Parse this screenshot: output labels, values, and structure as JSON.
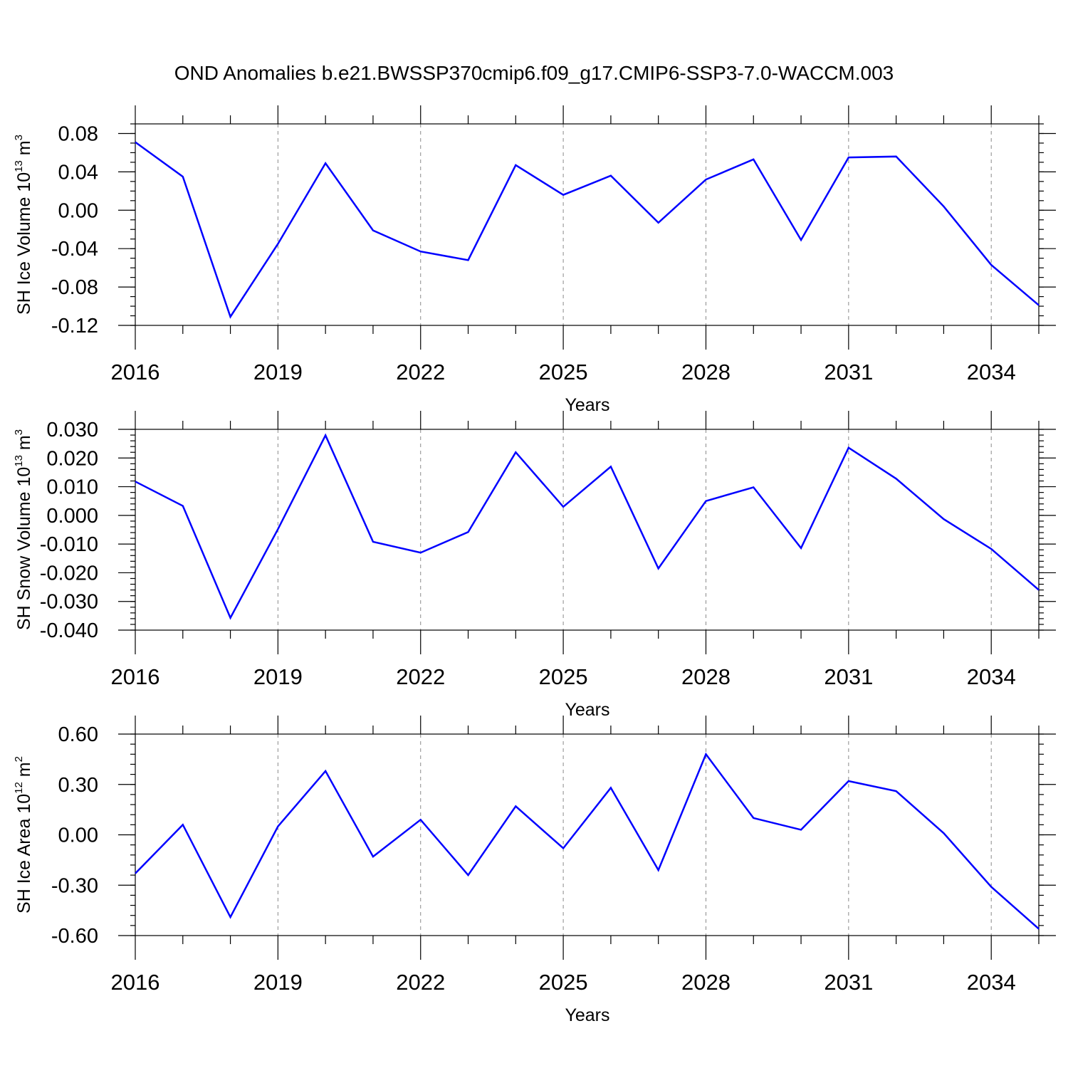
{
  "title": "OND Anomalies b.e21.BWSSP370cmip6.f09_g17.CMIP6-SSP3-7.0-WACCM.003",
  "colors": {
    "line": "#0000ff",
    "frame": "#000000",
    "grid": "#8a8a8a"
  },
  "chart_data": [
    {
      "type": "line",
      "ylabel": "SH Ice Volume 10",
      "ylabel_exponent": "13",
      "ylabel_unit": "m",
      "ylabel_unit_exponent": "3",
      "xlabel": "Years",
      "xlim": [
        2016,
        2035
      ],
      "ylim": [
        -0.12,
        0.09
      ],
      "grid": "vertical dashed at labeled years",
      "x_ticks": [
        2016,
        2019,
        2022,
        2025,
        2028,
        2031,
        2034
      ],
      "x_tick_labels": [
        "2016",
        "2019",
        "2022",
        "2025",
        "2028",
        "2031",
        "2034"
      ],
      "y_ticks": [
        -0.12,
        -0.08,
        -0.04,
        0.0,
        0.04,
        0.08
      ],
      "y_tick_labels": [
        "-0.12",
        "-0.08",
        "-0.04",
        "0.00",
        "0.04",
        "0.08"
      ],
      "y_minor_step": 0.01,
      "x": [
        2016,
        2017,
        2018,
        2019,
        2020,
        2021,
        2022,
        2023,
        2024,
        2025,
        2026,
        2027,
        2028,
        2029,
        2030,
        2031,
        2032,
        2033,
        2034,
        2035
      ],
      "series": [
        {
          "values": [
            0.071,
            0.035,
            -0.111,
            -0.035,
            0.049,
            -0.021,
            -0.043,
            -0.052,
            0.047,
            0.016,
            0.036,
            -0.013,
            0.032,
            0.053,
            -0.031,
            0.055,
            0.056,
            0.004,
            -0.057,
            -0.099
          ]
        }
      ]
    },
    {
      "type": "line",
      "ylabel": "SH Snow Volume 10",
      "ylabel_exponent": "13",
      "ylabel_unit": "m",
      "ylabel_unit_exponent": "3",
      "xlabel": "Years",
      "xlim": [
        2016,
        2035
      ],
      "ylim": [
        -0.04,
        0.03
      ],
      "grid": "vertical dashed at labeled years",
      "x_ticks": [
        2016,
        2019,
        2022,
        2025,
        2028,
        2031,
        2034
      ],
      "x_tick_labels": [
        "2016",
        "2019",
        "2022",
        "2025",
        "2028",
        "2031",
        "2034"
      ],
      "y_ticks": [
        -0.04,
        -0.03,
        -0.02,
        -0.01,
        0.0,
        0.01,
        0.02,
        0.03
      ],
      "y_tick_labels": [
        "-0.040",
        "-0.030",
        "-0.020",
        "-0.010",
        "0.000",
        "0.010",
        "0.020",
        "0.030"
      ],
      "y_minor_step": 0.002,
      "x": [
        2016,
        2017,
        2018,
        2019,
        2020,
        2021,
        2022,
        2023,
        2024,
        2025,
        2026,
        2027,
        2028,
        2029,
        2030,
        2031,
        2032,
        2033,
        2034,
        2035
      ],
      "series": [
        {
          "values": [
            0.0118,
            0.0033,
            -0.0357,
            -0.0048,
            0.0279,
            -0.0092,
            -0.013,
            -0.0058,
            0.022,
            0.003,
            0.017,
            -0.0185,
            0.005,
            0.0098,
            -0.0114,
            0.0236,
            0.0128,
            -0.0013,
            -0.0117,
            -0.026
          ]
        }
      ]
    },
    {
      "type": "line",
      "ylabel": "SH Ice Area 10",
      "ylabel_exponent": "12",
      "ylabel_unit": "m",
      "ylabel_unit_exponent": "2",
      "xlabel": "Years",
      "xlim": [
        2016,
        2035
      ],
      "ylim": [
        -0.6,
        0.6
      ],
      "grid": "vertical dashed at labeled years",
      "x_ticks": [
        2016,
        2019,
        2022,
        2025,
        2028,
        2031,
        2034
      ],
      "x_tick_labels": [
        "2016",
        "2019",
        "2022",
        "2025",
        "2028",
        "2031",
        "2034"
      ],
      "y_ticks": [
        -0.6,
        -0.3,
        0.0,
        0.3,
        0.6
      ],
      "y_tick_labels": [
        "-0.60",
        "-0.30",
        "0.00",
        "0.30",
        "0.60"
      ],
      "y_minor_step": 0.06,
      "x": [
        2016,
        2017,
        2018,
        2019,
        2020,
        2021,
        2022,
        2023,
        2024,
        2025,
        2026,
        2027,
        2028,
        2029,
        2030,
        2031,
        2032,
        2033,
        2034,
        2035
      ],
      "series": [
        {
          "values": [
            -0.23,
            0.06,
            -0.49,
            0.05,
            0.38,
            -0.13,
            0.09,
            -0.24,
            0.17,
            -0.08,
            0.28,
            -0.21,
            0.48,
            0.1,
            0.03,
            0.32,
            0.26,
            0.01,
            -0.31,
            -0.56
          ]
        }
      ]
    }
  ]
}
